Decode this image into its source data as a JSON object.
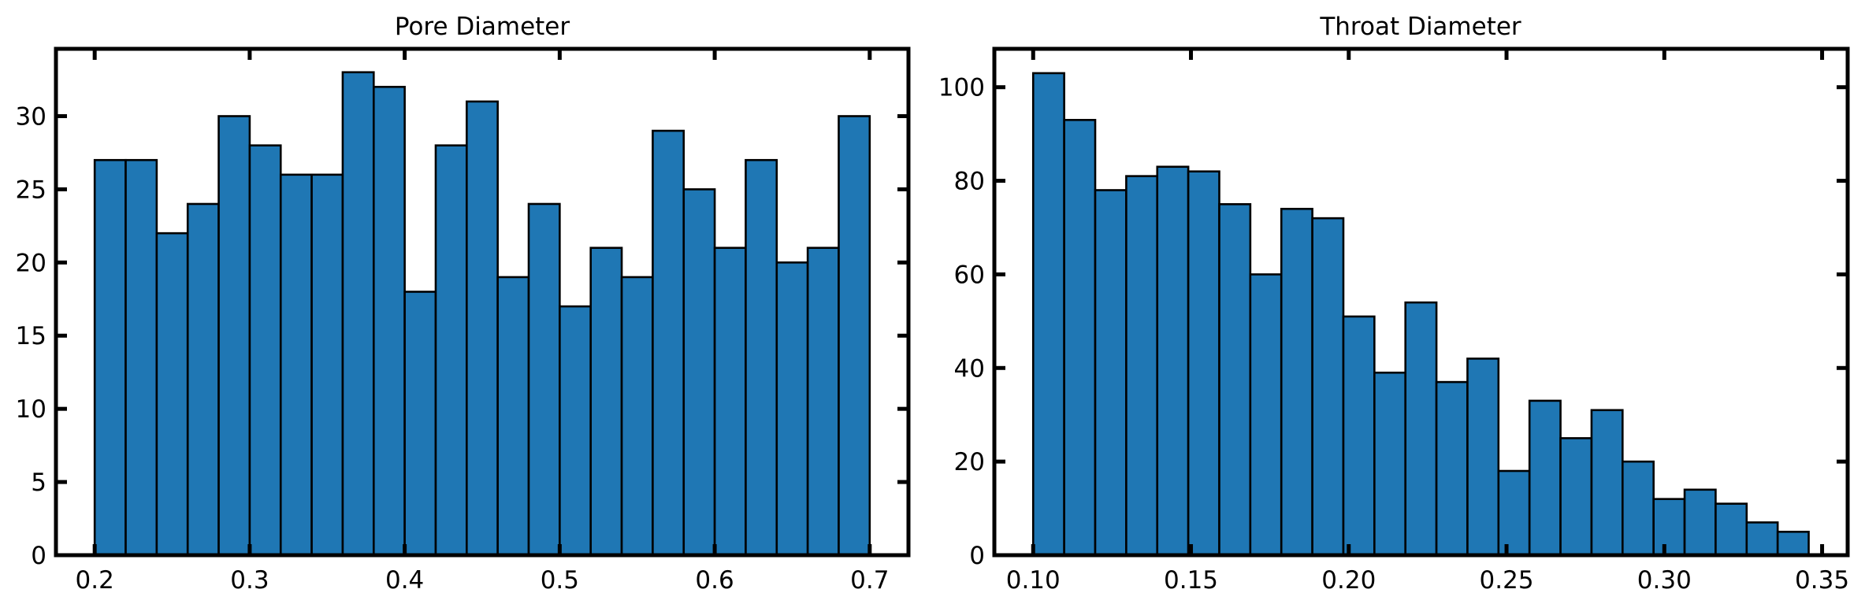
{
  "chart_data": [
    {
      "type": "bar",
      "title": "Pore Diameter",
      "bin_start": 0.2,
      "bin_width": 0.02,
      "values": [
        27,
        27,
        22,
        24,
        30,
        28,
        26,
        26,
        33,
        32,
        18,
        28,
        31,
        19,
        24,
        17,
        21,
        19,
        29,
        25,
        21,
        27,
        20,
        21,
        30
      ],
      "xlim": [
        0.175,
        0.725
      ],
      "ylim": [
        0,
        34.6
      ],
      "xticks": [
        0.2,
        0.3,
        0.4,
        0.5,
        0.6,
        0.7
      ],
      "xtick_labels": [
        "0.2",
        "0.3",
        "0.4",
        "0.5",
        "0.6",
        "0.7"
      ],
      "yticks": [
        0,
        5,
        10,
        15,
        20,
        25,
        30
      ],
      "ytick_labels": [
        "0",
        "5",
        "10",
        "15",
        "20",
        "25",
        "30"
      ],
      "xlabel": "",
      "ylabel": "",
      "grid": false,
      "bar_color": "#1f77b4",
      "edge_color": "#000000"
    },
    {
      "type": "bar",
      "title": "Throat Diameter",
      "bin_start": 0.1,
      "bin_width": 0.00983,
      "values": [
        103,
        93,
        78,
        81,
        83,
        82,
        75,
        60,
        74,
        72,
        51,
        39,
        54,
        37,
        42,
        18,
        33,
        25,
        31,
        20,
        12,
        14,
        11,
        7,
        5
      ],
      "xlim": [
        0.0877,
        0.3581
      ],
      "ylim": [
        0,
        108.2
      ],
      "xticks": [
        0.1,
        0.15,
        0.2,
        0.25,
        0.3,
        0.35
      ],
      "xtick_labels": [
        "0.10",
        "0.15",
        "0.20",
        "0.25",
        "0.30",
        "0.35"
      ],
      "yticks": [
        0,
        20,
        40,
        60,
        80,
        100
      ],
      "ytick_labels": [
        "0",
        "20",
        "40",
        "60",
        "80",
        "100"
      ],
      "xlabel": "",
      "ylabel": "",
      "grid": false,
      "bar_color": "#1f77b4",
      "edge_color": "#000000"
    }
  ]
}
